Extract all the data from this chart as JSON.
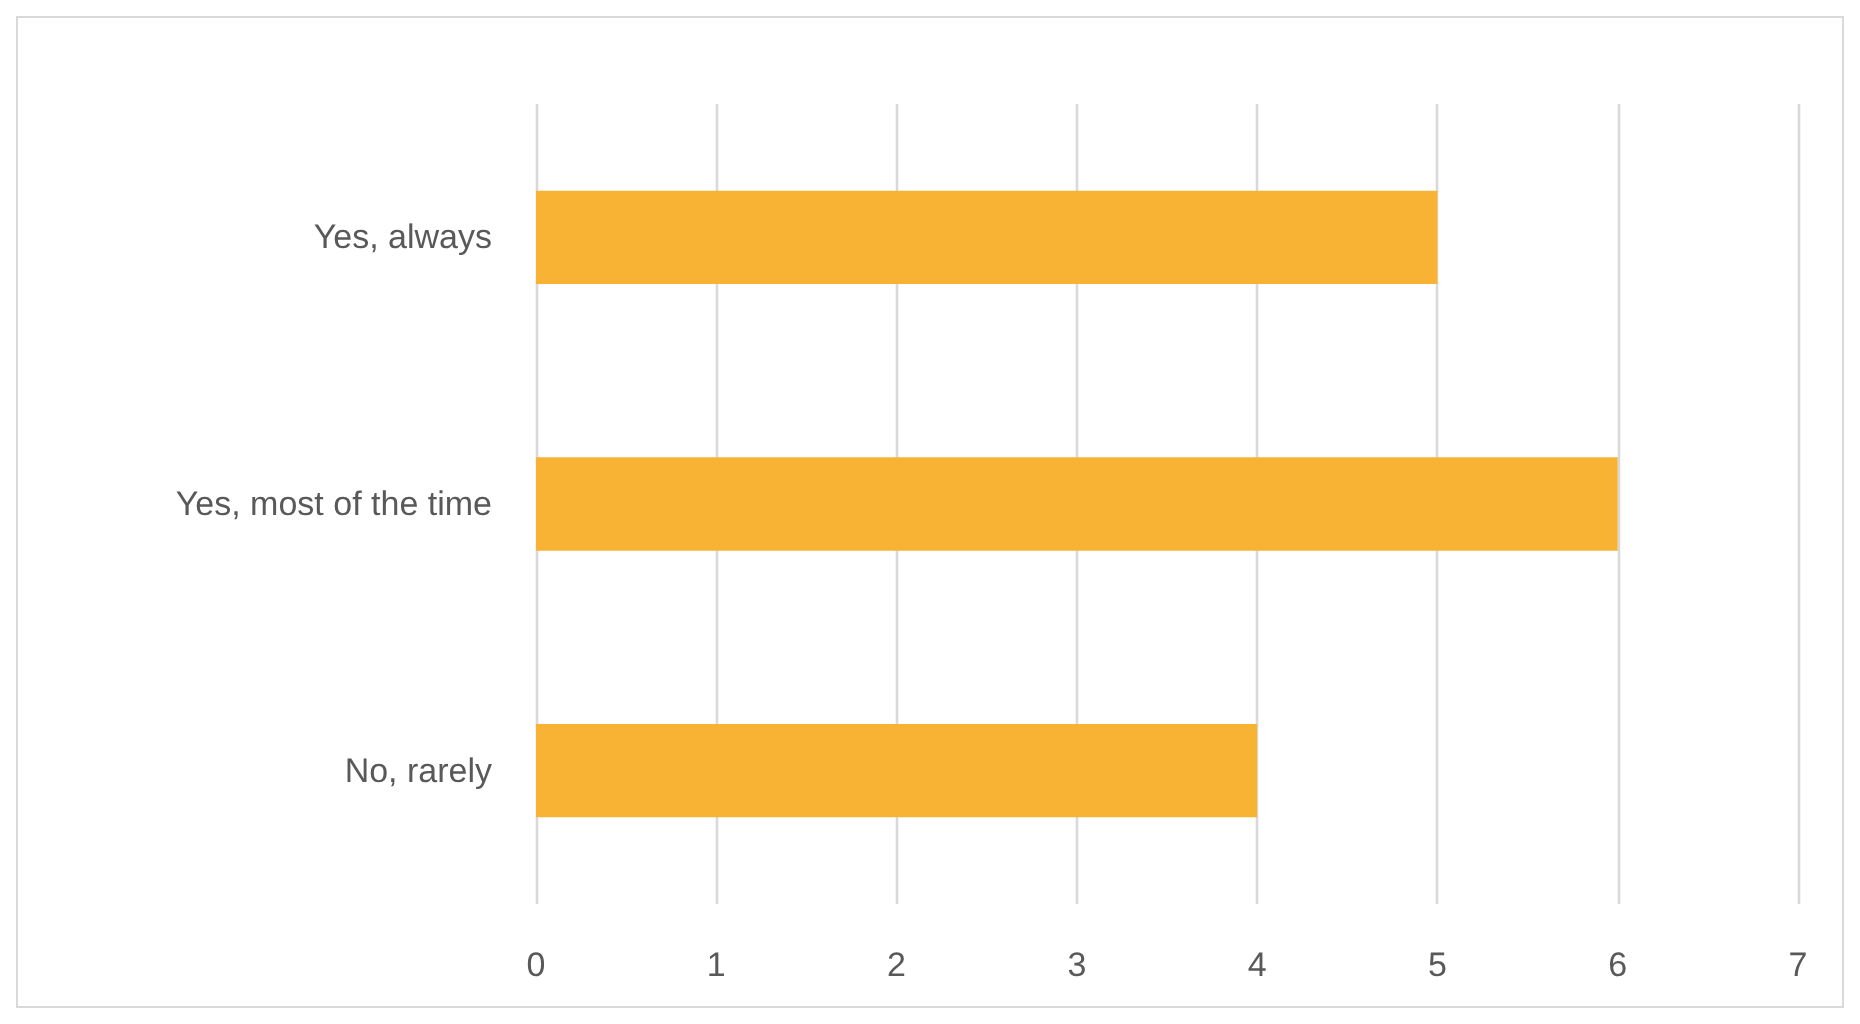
{
  "chart_data": {
    "type": "bar",
    "orientation": "horizontal",
    "categories": [
      "Yes, always",
      "Yes, most of the time",
      "No, rarely"
    ],
    "values": [
      5,
      6,
      4
    ],
    "color": "#f8b335",
    "xlim": [
      0,
      7
    ],
    "xticks": [
      0,
      1,
      2,
      3,
      4,
      5,
      6,
      7
    ],
    "grid": "x"
  }
}
